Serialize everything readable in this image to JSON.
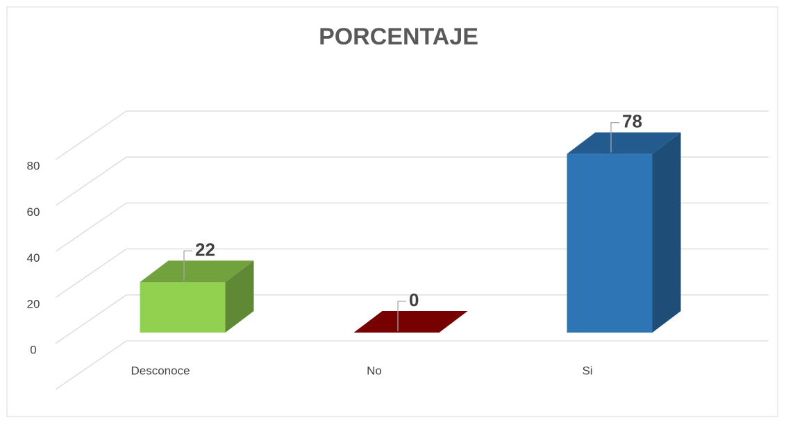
{
  "chart_data": {
    "type": "bar3d",
    "title": "PORCENTAJE",
    "categories": [
      "Desconoce",
      "No",
      "Si"
    ],
    "values": [
      22,
      0,
      78
    ],
    "colors": [
      "#92d050",
      "#990000",
      "#2e75b6"
    ],
    "ylim": [
      0,
      100
    ],
    "yticks": [
      0,
      20,
      40,
      60,
      80
    ],
    "grid": true
  }
}
